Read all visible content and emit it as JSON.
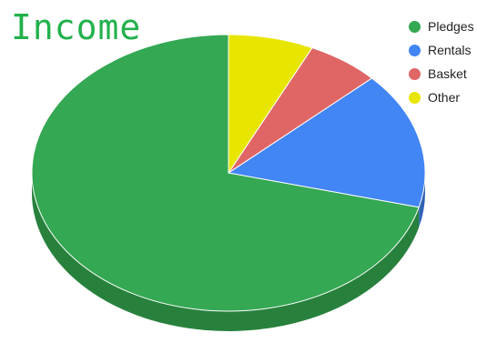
{
  "colors": {
    "title": "#22b14c",
    "pledges": "#34a853",
    "pledges_side": "#27813d",
    "rentals": "#4285f4",
    "rentals_side": "#2f62b5",
    "basket": "#e06666",
    "basket_side": "#a84a4a",
    "other": "#e8e600",
    "other_side": "#aeac00"
  },
  "chart_data": {
    "type": "pie",
    "title": "Income",
    "style": "3d",
    "legend_position": "right",
    "slices": [
      {
        "label": "Pledges",
        "value": 71,
        "color": "#34a853"
      },
      {
        "label": "Rentals",
        "value": 16,
        "color": "#4285f4"
      },
      {
        "label": "Basket",
        "value": 6,
        "color": "#e06666"
      },
      {
        "label": "Other",
        "value": 7,
        "color": "#e8e600"
      }
    ]
  }
}
